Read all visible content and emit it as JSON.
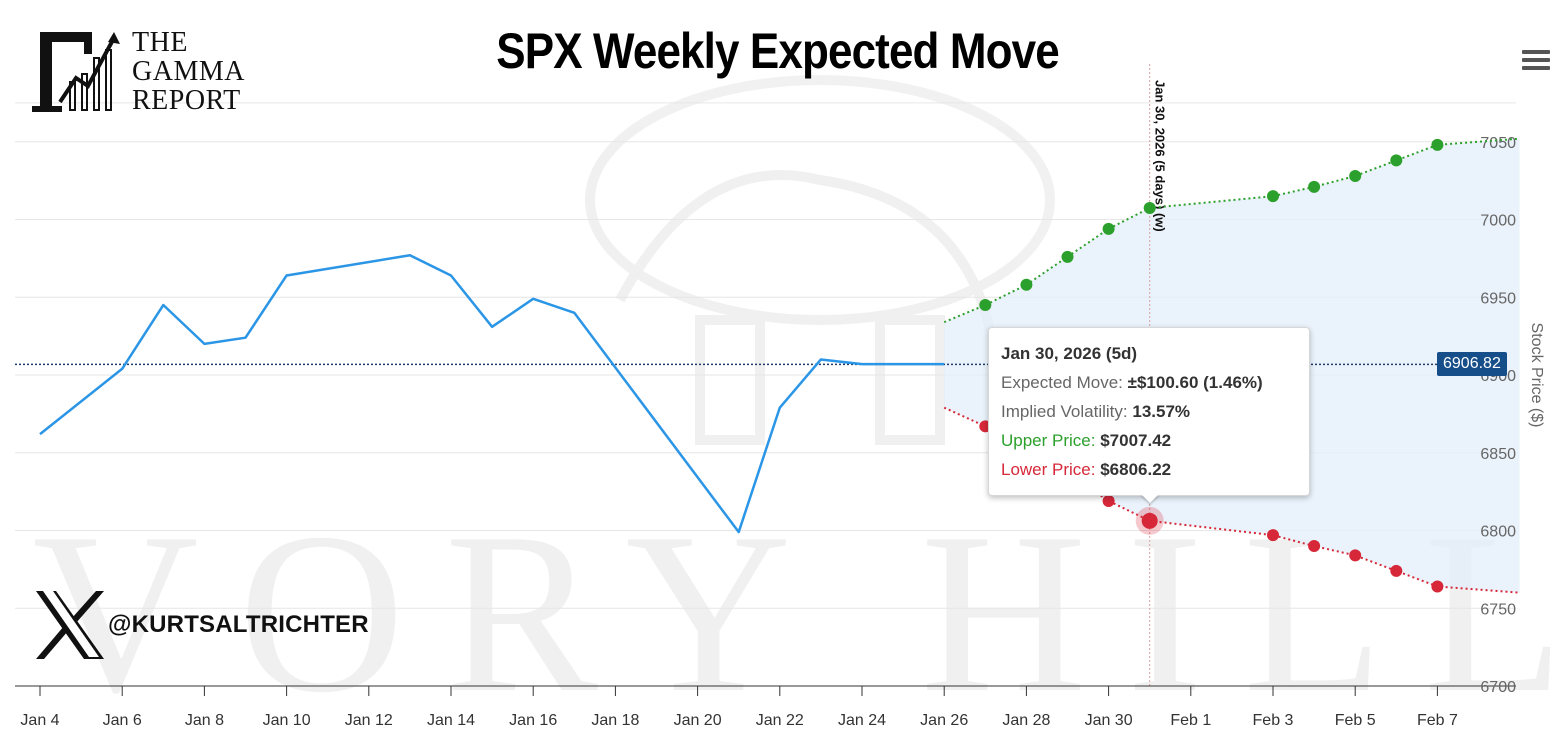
{
  "header": {
    "title": "SPX Weekly Expected Move"
  },
  "logo": {
    "lines": [
      "THE",
      "GAMMA",
      "REPORT"
    ]
  },
  "social": {
    "handle": "@KURTSALTRICHTER"
  },
  "watermark": {
    "text": "IVORY HILL"
  },
  "colors": {
    "price_line": "#2b95e6",
    "upper": "#2ca02c",
    "lower": "#d62839",
    "band_fill": "#e3eefa",
    "current_price_line": "#1f3b66",
    "badge": "#164e8a"
  },
  "chart_data": {
    "type": "line",
    "title": "SPX Weekly Expected Move",
    "ylabel": "Stock Price ($)",
    "ylim": [
      6700,
      7060
    ],
    "grid": true,
    "x_ticks": [
      "Jan 4",
      "Jan 6",
      "Jan 8",
      "Jan 10",
      "Jan 12",
      "Jan 14",
      "Jan 16",
      "Jan 18",
      "Jan 20",
      "Jan 22",
      "Jan 24",
      "Jan 26",
      "Jan 28",
      "Jan 30",
      "Feb 1",
      "Feb 3",
      "Feb 5",
      "Feb 7"
    ],
    "y_ticks": [
      6700,
      6750,
      6800,
      6850,
      6900,
      6950,
      7000,
      7050
    ],
    "current_price": {
      "value": 6906.82,
      "label": "6906.82"
    },
    "series": [
      {
        "kind": "price",
        "x": [
          "2026-01-04",
          "2026-01-06",
          "2026-01-07",
          "2026-01-08",
          "2026-01-09",
          "2026-01-10",
          "2026-01-13",
          "2026-01-14",
          "2026-01-15",
          "2026-01-16",
          "2026-01-17",
          "2026-01-21",
          "2026-01-22",
          "2026-01-23",
          "2026-01-24",
          "2026-01-26"
        ],
        "y": [
          6862,
          6904,
          6945,
          6920,
          6924,
          6964,
          6977,
          6964,
          6931,
          6949,
          6940,
          6799,
          6879,
          6910,
          6907,
          6907
        ]
      },
      {
        "kind": "upper",
        "x": [
          "2026-01-26",
          "2026-01-27",
          "2026-01-28",
          "2026-01-29",
          "2026-01-30",
          "2026-01-31",
          "2026-02-03",
          "2026-02-04",
          "2026-02-05",
          "2026-02-06",
          "2026-02-07",
          "2026-02-09"
        ],
        "y": [
          6934,
          6945,
          6958,
          6976,
          6994,
          7007.42,
          7015,
          7021,
          7028,
          7038,
          7048,
          7052
        ],
        "markers": [
          false,
          true,
          true,
          true,
          true,
          true,
          true,
          true,
          true,
          true,
          true,
          false
        ]
      },
      {
        "kind": "lower",
        "x": [
          "2026-01-26",
          "2026-01-27",
          "2026-01-28",
          "2026-01-29",
          "2026-01-30",
          "2026-01-31",
          "2026-02-03",
          "2026-02-04",
          "2026-02-05",
          "2026-02-06",
          "2026-02-07",
          "2026-02-09"
        ],
        "y": [
          6879,
          6867,
          6853,
          6837,
          6819,
          6806.22,
          6797,
          6790,
          6784,
          6774,
          6764,
          6760
        ],
        "markers": [
          false,
          true,
          true,
          true,
          true,
          true,
          true,
          true,
          true,
          true,
          true,
          false
        ]
      }
    ],
    "plot_band": {
      "label": "Jan 30, 2026 (5 days) (w)",
      "x": "2026-01-31"
    },
    "tooltip": {
      "title": "Jan 30, 2026 (5d)",
      "expected_move_label": "Expected Move:",
      "expected_move_value": "±$100.60 (1.46%)",
      "iv_label": "Implied Volatility:",
      "iv_value": "13.57%",
      "upper_label": "Upper Price:",
      "upper_value": "$7007.42",
      "lower_label": "Lower Price:",
      "lower_value": "$6806.22"
    }
  }
}
